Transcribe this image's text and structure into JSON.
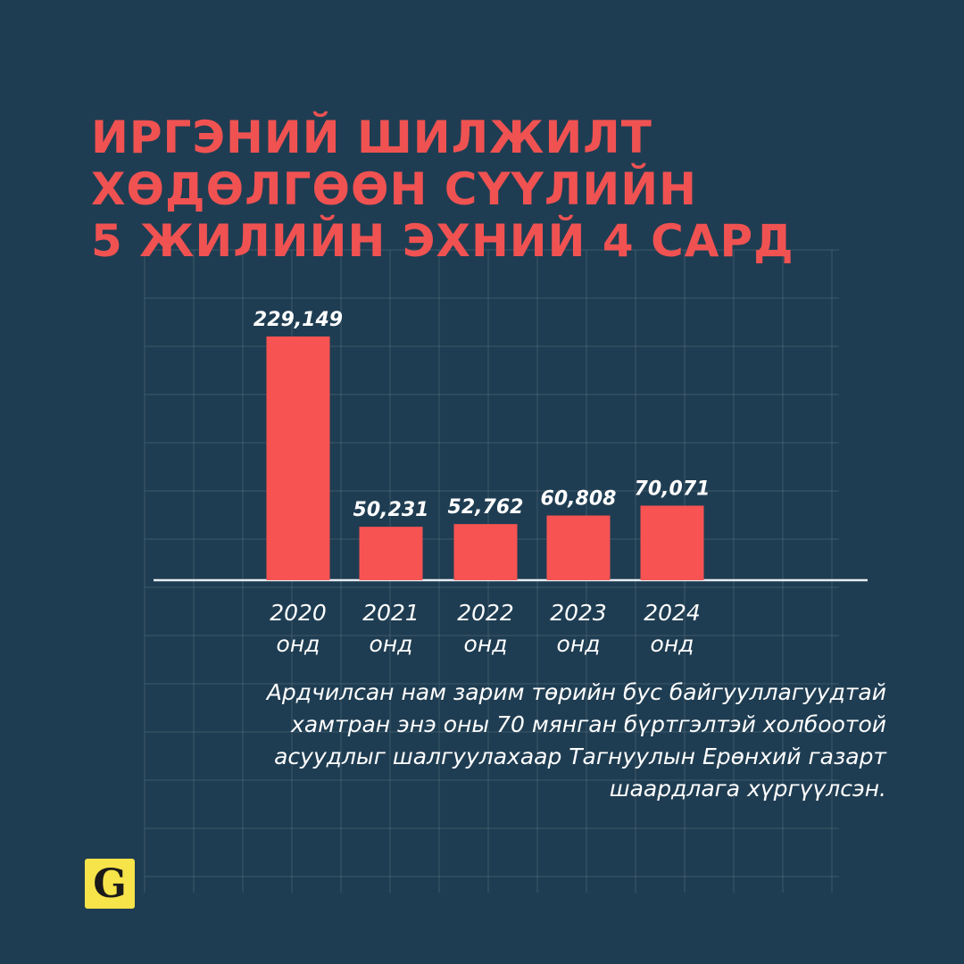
{
  "title_lines": [
    "ИРГЭНИЙ ШИЛЖИЛТ",
    "ХӨДӨЛГӨӨН СҮҮЛИЙН",
    "5 ЖИЛИЙН ЭХНИЙ 4 САРД"
  ],
  "chart_data": {
    "type": "bar",
    "categories": [
      "2020\nонд",
      "2021\nонд",
      "2022\nонд",
      "2023\nонд",
      "2024\nонд"
    ],
    "values": [
      229149,
      50231,
      52762,
      60808,
      70071
    ],
    "value_labels": [
      "229,149",
      "50,231",
      "52,762",
      "60,808",
      "70,071"
    ],
    "ylim": [
      0,
      235000
    ],
    "grid": true,
    "bar_color": "#f75352"
  },
  "caption_lines": [
    "Ардчилсан нам зарим төрийн бус байгууллагуудтай",
    "хамтран энэ оны 70 мянган бүртгэлтэй холбоотой",
    "асуудлыг шалгуулахаар Тагнуулын Ерөнхий газарт",
    "шаардлага хүргүүлсэн."
  ],
  "logo": {
    "letter": "G",
    "color": "#f7e34a"
  },
  "colors": {
    "background": "#1f3d52",
    "accent": "#f05252",
    "text": "#ffffff"
  }
}
